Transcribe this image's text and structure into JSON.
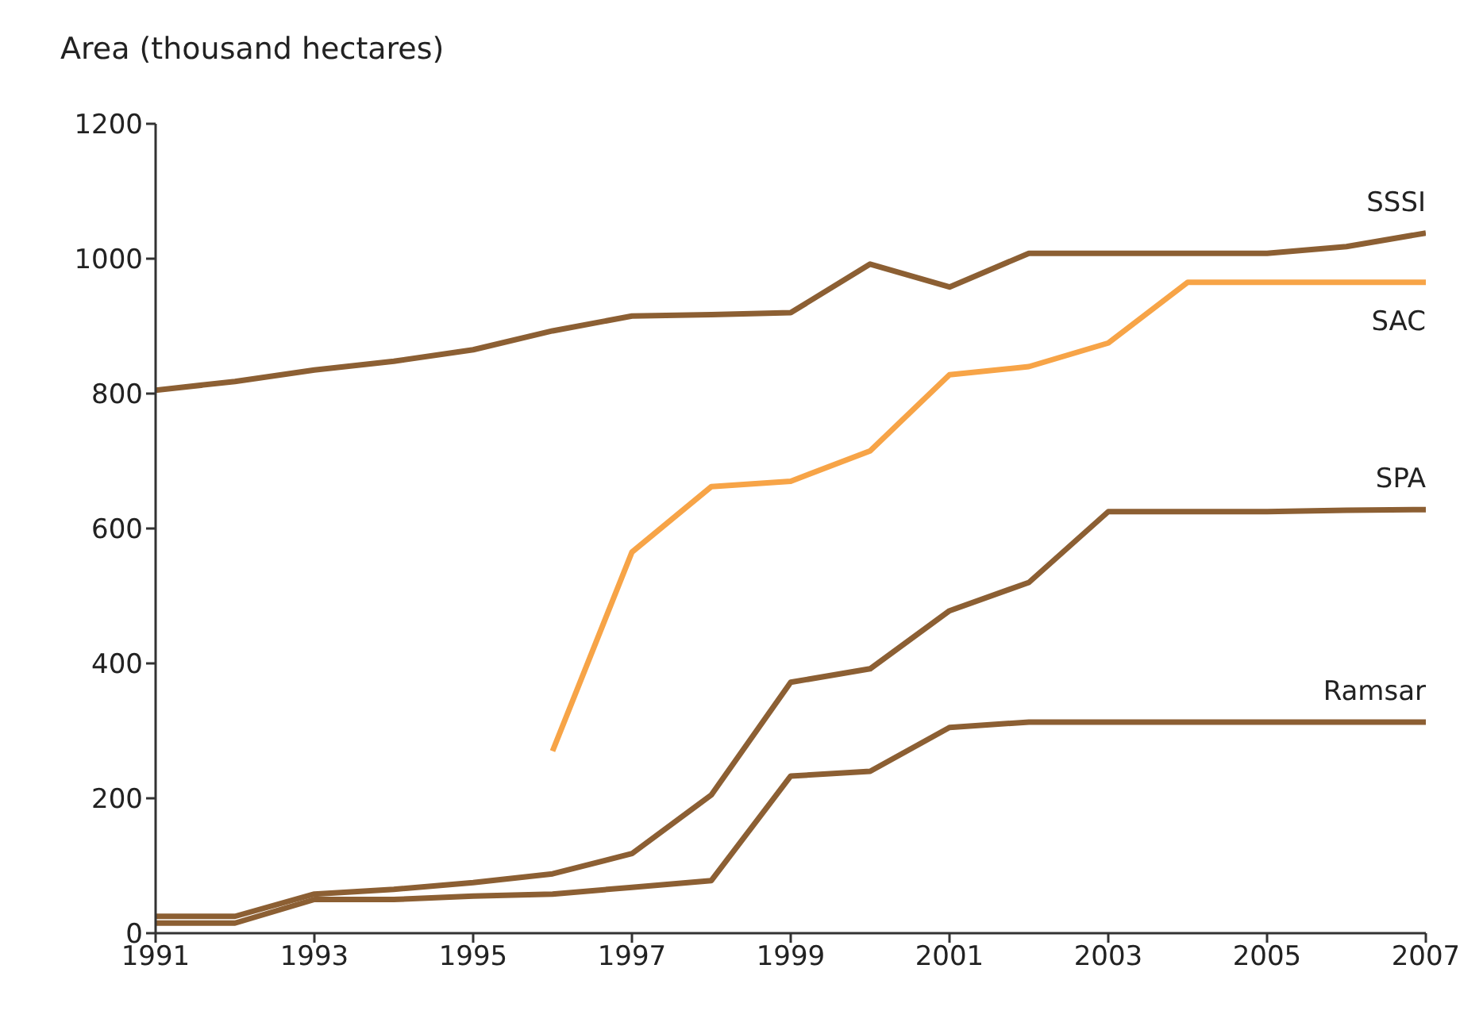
{
  "chart_data": {
    "type": "line",
    "ylabel": "Area (thousand hectares)",
    "x": [
      1991,
      1992,
      1993,
      1994,
      1995,
      1996,
      1997,
      1998,
      1999,
      2000,
      2001,
      2002,
      2003,
      2004,
      2005,
      2006,
      2007
    ],
    "series": [
      {
        "name": "SSSI",
        "color": "#8c5f33",
        "values": [
          805,
          818,
          835,
          848,
          865,
          893,
          915,
          917,
          920,
          992,
          958,
          1008,
          1008,
          1008,
          1008,
          1018,
          1038
        ]
      },
      {
        "name": "SAC",
        "color": "#f7a447",
        "values": [
          null,
          null,
          null,
          null,
          null,
          270,
          565,
          662,
          670,
          715,
          828,
          840,
          875,
          965,
          965,
          965,
          965
        ]
      },
      {
        "name": "SPA",
        "color": "#8c5f33",
        "values": [
          25,
          25,
          58,
          65,
          75,
          88,
          118,
          205,
          372,
          392,
          478,
          520,
          625,
          625,
          625,
          627,
          628
        ]
      },
      {
        "name": "Ramsar",
        "color": "#8c5f33",
        "values": [
          15,
          15,
          50,
          50,
          55,
          58,
          68,
          78,
          233,
          240,
          305,
          313,
          313,
          313,
          313,
          313,
          313
        ]
      }
    ],
    "xlim": [
      1991,
      2007
    ],
    "xticks": [
      1991,
      1993,
      1995,
      1997,
      1999,
      2001,
      2003,
      2005,
      2007
    ],
    "ylim": [
      0,
      1200
    ],
    "yticks": [
      0,
      200,
      400,
      600,
      800,
      1000,
      1200
    ],
    "grid": false,
    "legend": false,
    "marker": "none",
    "line_style": "solid"
  }
}
